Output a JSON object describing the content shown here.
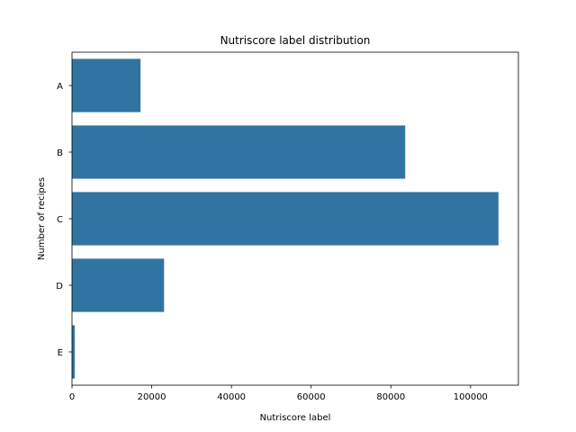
{
  "chart_data": {
    "type": "bar",
    "orientation": "horizontal",
    "title": "Nutriscore label distribution",
    "xlabel": "Nutriscore label",
    "ylabel": "Number of recipes",
    "categories": [
      "A",
      "B",
      "C",
      "D",
      "E"
    ],
    "values": [
      17200,
      83600,
      107000,
      23100,
      700
    ],
    "xlim": [
      0,
      112000
    ],
    "xticks": [
      0,
      20000,
      40000,
      60000,
      80000,
      100000
    ],
    "grid": false,
    "bar_color": "#3274a1"
  }
}
